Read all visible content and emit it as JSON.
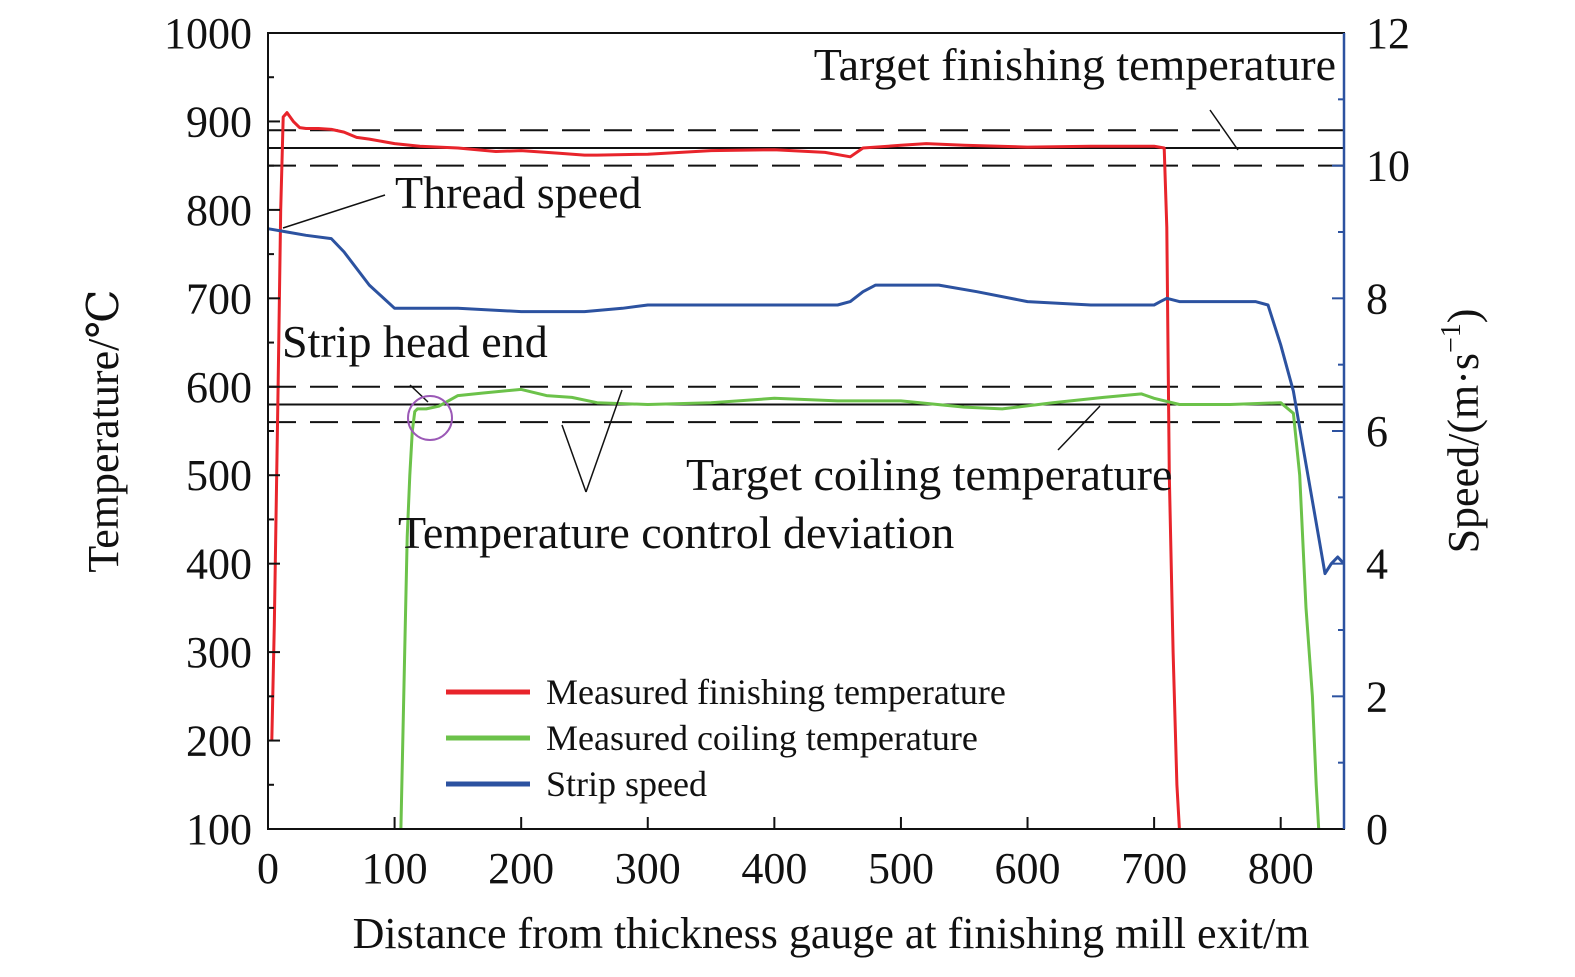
{
  "chart_data": {
    "type": "line",
    "xlabel": "Distance from thickness gauge at finishing mill exit/m",
    "ylabel": "Temperature/℃",
    "y2label_base": "Speed/(m·s",
    "y2label_sup": "−1",
    "y2label_close": ")",
    "xlim": [
      0,
      850
    ],
    "ylim": [
      100,
      1000
    ],
    "y2lim": [
      0,
      12
    ],
    "xticks": [
      0,
      100,
      200,
      300,
      400,
      500,
      600,
      700,
      800
    ],
    "xtick_labels": [
      "0",
      "100",
      "200",
      "300",
      "400",
      "500",
      "600",
      "700",
      "800"
    ],
    "yticks": [
      100,
      200,
      300,
      400,
      500,
      600,
      700,
      800,
      900,
      1000
    ],
    "ytick_labels": [
      "100",
      "200",
      "300",
      "400",
      "500",
      "600",
      "700",
      "800",
      "900",
      "1000"
    ],
    "y2ticks": [
      0,
      2,
      4,
      6,
      8,
      10,
      12
    ],
    "y2tick_labels": [
      "0",
      "2",
      "4",
      "6",
      "8",
      "10",
      "12"
    ],
    "reference_lines": [
      {
        "y": 890,
        "style": "dashed"
      },
      {
        "y": 870,
        "style": "solid"
      },
      {
        "y": 850,
        "style": "dashed"
      },
      {
        "y": 600,
        "style": "dashed"
      },
      {
        "y": 580,
        "style": "solid"
      },
      {
        "y": 560,
        "style": "dashed"
      }
    ],
    "annotations": [
      {
        "text": "Target finishing temperature"
      },
      {
        "text": "Thread speed"
      },
      {
        "text": "Strip head end"
      },
      {
        "text": "Target coiling temperature"
      },
      {
        "text": "Temperature control deviation"
      }
    ],
    "series": [
      {
        "name": "Measured finishing temperature",
        "axis": "left",
        "color": "#e8242b",
        "x": [
          3,
          5,
          8,
          10,
          12,
          15,
          20,
          25,
          30,
          40,
          50,
          60,
          70,
          80,
          100,
          120,
          150,
          180,
          200,
          230,
          250,
          260,
          300,
          350,
          400,
          440,
          460,
          470,
          500,
          520,
          550,
          600,
          650,
          700,
          708,
          710,
          712,
          715,
          718,
          720
        ],
        "y": [
          200,
          330,
          600,
          800,
          905,
          910,
          900,
          893,
          892,
          892,
          891,
          888,
          882,
          880,
          875,
          872,
          870,
          866,
          867,
          864,
          862,
          862,
          863,
          867,
          868,
          865,
          860,
          870,
          873,
          875,
          873,
          871,
          872,
          872,
          870,
          780,
          500,
          300,
          150,
          100
        ]
      },
      {
        "name": "Measured coiling temperature",
        "axis": "left",
        "color": "#6cc24a",
        "x": [
          105,
          108,
          110,
          112,
          114,
          116,
          118,
          125,
          135,
          150,
          170,
          200,
          220,
          240,
          260,
          300,
          350,
          400,
          450,
          500,
          550,
          580,
          620,
          660,
          690,
          700,
          720,
          760,
          800,
          810,
          815,
          820,
          825,
          828,
          830
        ],
        "y": [
          100,
          300,
          430,
          500,
          550,
          572,
          575,
          575,
          578,
          590,
          593,
          597,
          590,
          588,
          582,
          580,
          582,
          587,
          584,
          584,
          577,
          575,
          582,
          588,
          592,
          587,
          580,
          580,
          582,
          570,
          500,
          350,
          250,
          150,
          100
        ]
      },
      {
        "name": "Strip speed",
        "axis": "right",
        "color": "#2c52a0",
        "x": [
          0,
          15,
          30,
          50,
          60,
          80,
          100,
          150,
          200,
          250,
          280,
          300,
          350,
          400,
          450,
          460,
          470,
          480,
          500,
          530,
          560,
          600,
          650,
          700,
          705,
          710,
          720,
          740,
          760,
          780,
          790,
          800,
          810,
          820,
          830,
          835,
          840,
          845,
          850
        ],
        "y": [
          9.05,
          9.0,
          8.95,
          8.9,
          8.7,
          8.2,
          7.85,
          7.85,
          7.8,
          7.8,
          7.85,
          7.9,
          7.9,
          7.9,
          7.9,
          7.95,
          8.1,
          8.2,
          8.2,
          8.2,
          8.1,
          7.95,
          7.9,
          7.9,
          7.95,
          8.0,
          7.95,
          7.95,
          7.95,
          7.95,
          7.9,
          7.3,
          6.6,
          5.5,
          4.4,
          3.85,
          4.0,
          4.1,
          4.0
        ]
      }
    ]
  }
}
